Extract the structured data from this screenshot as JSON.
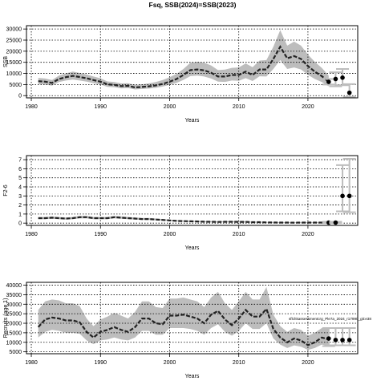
{
  "title": "Fsq, SSB(2024)=SSB(2023)",
  "colors": {
    "band": "#bdbdbd",
    "line": "#222222",
    "grid": "#000000",
    "point": "#000000",
    "errorbar": "#bdbdbd"
  },
  "chart_data": [
    {
      "id": "ssb",
      "type": "line",
      "ylabel": "SSB",
      "xlabel": "Years",
      "xlim": [
        1979.3,
        2027.2
      ],
      "ylim": [
        -1000,
        31500
      ],
      "xticks": [
        "1980",
        "1990",
        "2000",
        "2010",
        "2020"
      ],
      "yticks": [
        "0",
        "5000",
        "10000",
        "15000",
        "20000",
        "25000",
        "30000"
      ],
      "grid": true,
      "x": [
        1981,
        1982,
        1983,
        1984,
        1985,
        1986,
        1987,
        1988,
        1989,
        1990,
        1991,
        1992,
        1993,
        1994,
        1995,
        1996,
        1997,
        1998,
        1999,
        2000,
        2001,
        2002,
        2003,
        2004,
        2005,
        2006,
        2007,
        2008,
        2009,
        2010,
        2011,
        2012,
        2013,
        2014,
        2015,
        2016,
        2017,
        2018,
        2019,
        2020,
        2021,
        2022,
        2023
      ],
      "series": [
        {
          "role": "estimate",
          "values": [
            6500,
            6300,
            5700,
            7500,
            8300,
            8900,
            8400,
            7800,
            7000,
            6300,
            5100,
            4800,
            4300,
            4400,
            3700,
            3900,
            4200,
            4600,
            5300,
            6300,
            7500,
            9300,
            11500,
            11800,
            11400,
            10300,
            8600,
            8600,
            9300,
            9300,
            10800,
            9300,
            11800,
            11800,
            16500,
            22000,
            16800,
            17800,
            16500,
            13300,
            10800,
            8800,
            6200
          ]
        },
        {
          "role": "upper",
          "values": [
            8000,
            7700,
            7000,
            9000,
            10000,
            10800,
            10200,
            9500,
            8600,
            7800,
            6400,
            6100,
            5500,
            5600,
            4800,
            5100,
            5500,
            6100,
            7000,
            8300,
            9800,
            12000,
            14800,
            15200,
            14800,
            13600,
            11500,
            11700,
            12500,
            12700,
            14500,
            12800,
            15800,
            16000,
            22000,
            29500,
            22500,
            24300,
            22500,
            18500,
            15200,
            12500,
            9000
          ]
        },
        {
          "role": "lower",
          "values": [
            5200,
            5000,
            4500,
            6100,
            6800,
            7200,
            6800,
            6300,
            5600,
            5000,
            4000,
            3800,
            3300,
            3400,
            2800,
            3000,
            3200,
            3500,
            4100,
            4900,
            5700,
            7100,
            8800,
            9000,
            8600,
            7700,
            6300,
            6200,
            6800,
            6700,
            7900,
            6600,
            8700,
            8600,
            12000,
            16000,
            12000,
            12700,
            11800,
            9400,
            7500,
            6100,
            4200
          ]
        }
      ],
      "projection": [
        {
          "x": 2023,
          "y": 6200,
          "lower": 5000,
          "upper": 7500
        },
        {
          "x": 2024,
          "y": 7500,
          "lower": 4200,
          "upper": 10500
        },
        {
          "x": 2025,
          "y": 8100,
          "lower": 4700,
          "upper": 12000
        },
        {
          "x": 2026,
          "y": 1300,
          "lower": -600,
          "upper": 5200
        }
      ]
    },
    {
      "id": "fbar",
      "type": "line",
      "ylabel": "F2-6",
      "xlabel": "Years",
      "xlim": [
        1979.3,
        2027.2
      ],
      "ylim": [
        -0.25,
        7.45
      ],
      "xticks": [
        "1980",
        "1990",
        "2000",
        "2010",
        "2020"
      ],
      "yticks": [
        "0",
        "1",
        "2",
        "3",
        "4",
        "5",
        "6",
        "7"
      ],
      "grid": true,
      "x": [
        1981,
        1982,
        1983,
        1984,
        1985,
        1986,
        1987,
        1988,
        1989,
        1990,
        1991,
        1992,
        1993,
        1994,
        1995,
        1996,
        1997,
        1998,
        1999,
        2000,
        2001,
        2002,
        2003,
        2004,
        2005,
        2006,
        2007,
        2008,
        2009,
        2010,
        2011,
        2012,
        2013,
        2014,
        2015,
        2016,
        2017,
        2018,
        2019,
        2020,
        2021,
        2022,
        2023
      ],
      "series": [
        {
          "role": "estimate",
          "values": [
            0.55,
            0.55,
            0.6,
            0.55,
            0.5,
            0.55,
            0.65,
            0.65,
            0.55,
            0.55,
            0.55,
            0.65,
            0.6,
            0.55,
            0.5,
            0.45,
            0.45,
            0.4,
            0.35,
            0.3,
            0.25,
            0.22,
            0.2,
            0.18,
            0.16,
            0.15,
            0.13,
            0.15,
            0.15,
            0.14,
            0.14,
            0.1,
            0.1,
            0.08,
            0.07,
            0.06,
            0.06,
            0.05,
            0.06,
            0.06,
            0.06,
            0.06,
            0.07
          ]
        },
        {
          "role": "upper",
          "values": [
            0.68,
            0.68,
            0.73,
            0.68,
            0.62,
            0.68,
            0.8,
            0.8,
            0.68,
            0.68,
            0.68,
            0.8,
            0.74,
            0.68,
            0.62,
            0.56,
            0.56,
            0.5,
            0.44,
            0.38,
            0.32,
            0.29,
            0.27,
            0.25,
            0.22,
            0.21,
            0.19,
            0.21,
            0.21,
            0.2,
            0.2,
            0.15,
            0.15,
            0.12,
            0.11,
            0.1,
            0.1,
            0.09,
            0.1,
            0.1,
            0.1,
            0.1,
            0.12
          ]
        },
        {
          "role": "lower",
          "values": [
            0.44,
            0.44,
            0.48,
            0.44,
            0.4,
            0.44,
            0.52,
            0.52,
            0.44,
            0.44,
            0.44,
            0.52,
            0.48,
            0.44,
            0.4,
            0.36,
            0.36,
            0.32,
            0.28,
            0.23,
            0.19,
            0.16,
            0.14,
            0.12,
            0.11,
            0.1,
            0.08,
            0.1,
            0.1,
            0.09,
            0.09,
            0.06,
            0.06,
            0.05,
            0.04,
            0.03,
            0.03,
            0.02,
            0.03,
            0.03,
            0.03,
            0.03,
            0.04
          ]
        }
      ],
      "projection": [
        {
          "x": 2023,
          "y": 0.06,
          "lower": 0.0,
          "upper": 0.15
        },
        {
          "x": 2024,
          "y": 0.06,
          "lower": 0.0,
          "upper": 0.15
        },
        {
          "x": 2025,
          "y": 3.0,
          "lower": 1.3,
          "upper": 6.4
        },
        {
          "x": 2026,
          "y": 3.0,
          "lower": 1.2,
          "upper": 7.1
        }
      ]
    },
    {
      "id": "recruitment",
      "type": "line",
      "ylabel": "Recruits (age 1)",
      "xlabel": "Years",
      "xlim": [
        1979.3,
        2027.2
      ],
      "ylim": [
        4000,
        41500
      ],
      "xticks": [
        "1980",
        "1990",
        "2000",
        "2010",
        "2020"
      ],
      "yticks": [
        "5000",
        "10000",
        "15000",
        "20000",
        "25000",
        "30000",
        "35000",
        "40000"
      ],
      "grid": true,
      "annotation": "sflchkassessmentcrg_Ple7a_2024_r17990_git:e38",
      "x": [
        1981,
        1982,
        1983,
        1984,
        1985,
        1986,
        1987,
        1988,
        1989,
        1990,
        1991,
        1992,
        1993,
        1994,
        1995,
        1996,
        1997,
        1998,
        1999,
        2000,
        2001,
        2002,
        2003,
        2004,
        2005,
        2006,
        2007,
        2008,
        2009,
        2010,
        2011,
        2012,
        2013,
        2014,
        2015,
        2016,
        2017,
        2018,
        2019,
        2020,
        2021,
        2022,
        2023
      ],
      "series": [
        {
          "role": "estimate",
          "values": [
            18000,
            22000,
            23000,
            22500,
            21500,
            21500,
            20500,
            15500,
            12500,
            15500,
            16500,
            18000,
            16500,
            15500,
            18000,
            22500,
            22500,
            20000,
            19500,
            24000,
            24000,
            24500,
            23500,
            22500,
            20000,
            24500,
            26500,
            22000,
            19000,
            22500,
            27000,
            23500,
            23500,
            27500,
            17000,
            12500,
            10000,
            12000,
            11000,
            8500,
            10000,
            12500,
            11500
          ]
        },
        {
          "role": "upper",
          "values": [
            27000,
            31500,
            32500,
            32000,
            30500,
            30500,
            29000,
            22500,
            18500,
            22000,
            23500,
            25500,
            24000,
            22500,
            26000,
            31500,
            31500,
            28500,
            28000,
            33000,
            33000,
            33500,
            32500,
            31500,
            28500,
            33500,
            36500,
            30500,
            27000,
            31500,
            36500,
            32500,
            32500,
            39000,
            24500,
            18500,
            15500,
            17500,
            16500,
            13500,
            15000,
            17500,
            17000
          ]
        },
        {
          "role": "lower",
          "values": [
            12500,
            15500,
            16500,
            16000,
            15000,
            15000,
            14500,
            11000,
            9000,
            11000,
            11500,
            12500,
            11500,
            11000,
            12500,
            16000,
            16000,
            14000,
            14000,
            17500,
            17500,
            17500,
            17000,
            16000,
            14000,
            17500,
            19500,
            15500,
            13500,
            16000,
            20000,
            17000,
            17000,
            20000,
            12000,
            8800,
            7000,
            8400,
            7700,
            6000,
            7000,
            8800,
            8000
          ]
        }
      ],
      "projection": [
        {
          "x": 2023,
          "y": 12000,
          "lower": 8000,
          "upper": 17500
        },
        {
          "x": 2024,
          "y": 11200,
          "lower": 8400,
          "upper": 17500
        },
        {
          "x": 2025,
          "y": 11200,
          "lower": 8400,
          "upper": 17500
        },
        {
          "x": 2026,
          "y": 11200,
          "lower": 8400,
          "upper": 17500
        }
      ]
    }
  ]
}
